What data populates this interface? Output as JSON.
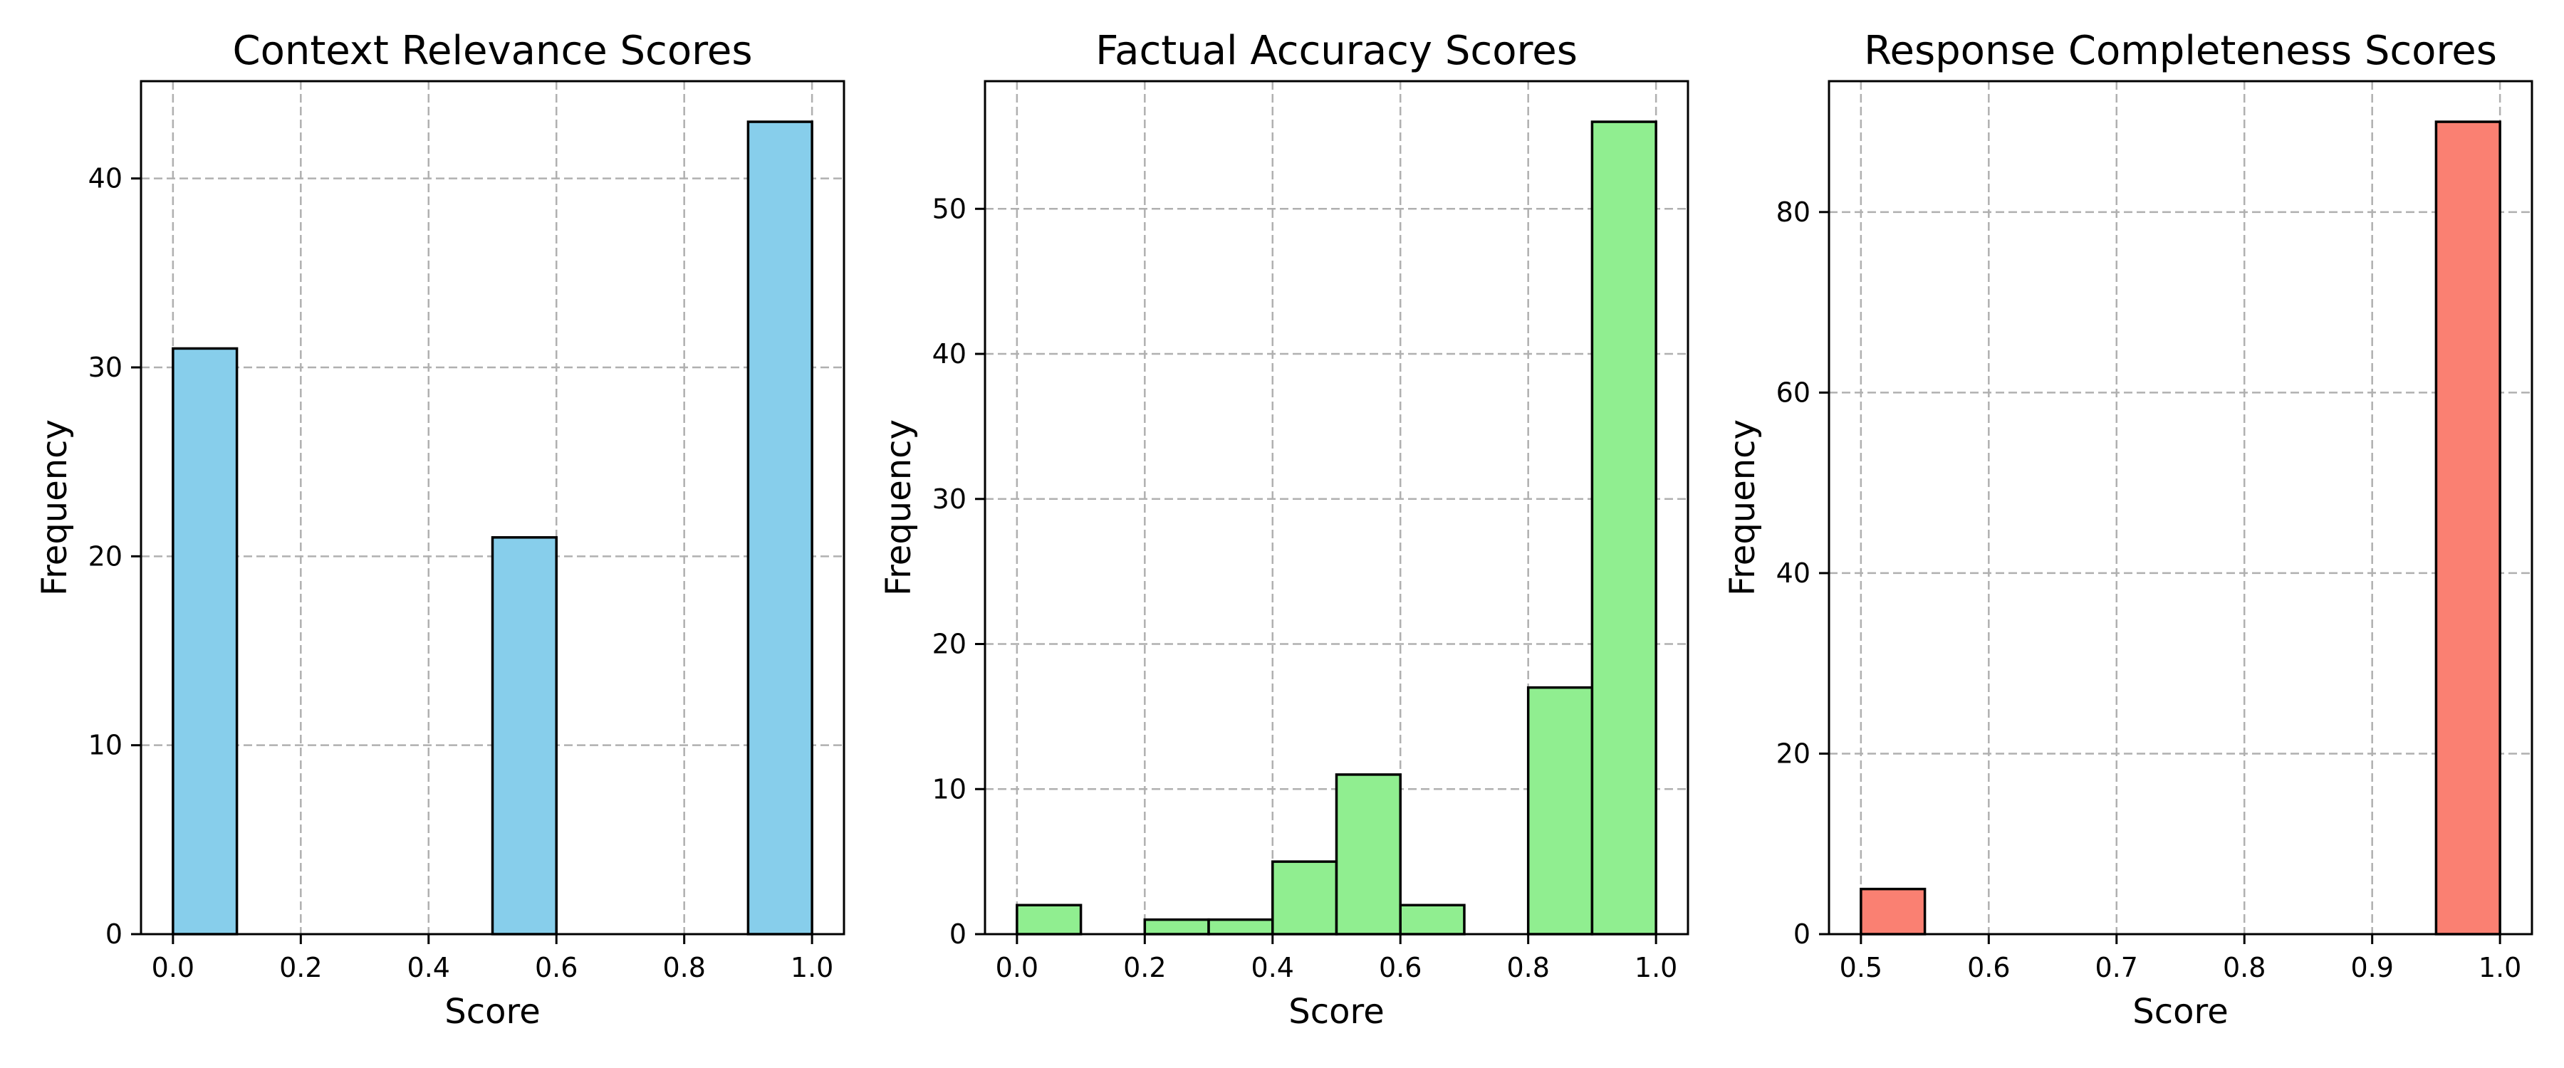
{
  "chart_data": [
    {
      "type": "bar",
      "title": "Context Relevance Scores",
      "xlabel": "Score",
      "ylabel": "Frequency",
      "color": "#87ceeb",
      "bin_edges": [
        0.0,
        0.1,
        0.2,
        0.3,
        0.4,
        0.5,
        0.6,
        0.7,
        0.8,
        0.9,
        1.0
      ],
      "values": [
        31,
        0,
        0,
        0,
        0,
        21,
        0,
        0,
        0,
        43
      ],
      "xlim": [
        -0.05,
        1.05
      ],
      "ylim": [
        0,
        45.15
      ],
      "xticks": [
        0.0,
        0.2,
        0.4,
        0.6,
        0.8,
        1.0
      ],
      "xtick_labels": [
        "0.0",
        "0.2",
        "0.4",
        "0.6",
        "0.8",
        "1.0"
      ],
      "yticks": [
        0,
        10,
        20,
        30,
        40
      ],
      "ytick_labels": [
        "0",
        "10",
        "20",
        "30",
        "40"
      ],
      "grid": true
    },
    {
      "type": "bar",
      "title": "Factual Accuracy Scores",
      "xlabel": "Score",
      "ylabel": "Frequency",
      "color": "#90ee90",
      "bin_edges": [
        0.0,
        0.1,
        0.2,
        0.3,
        0.4,
        0.5,
        0.6,
        0.7,
        0.8,
        0.9,
        1.0
      ],
      "values": [
        2,
        0,
        1,
        1,
        5,
        11,
        2,
        0,
        17,
        56
      ],
      "xlim": [
        -0.05,
        1.05
      ],
      "ylim": [
        0,
        58.8
      ],
      "xticks": [
        0.0,
        0.2,
        0.4,
        0.6,
        0.8,
        1.0
      ],
      "xtick_labels": [
        "0.0",
        "0.2",
        "0.4",
        "0.6",
        "0.8",
        "1.0"
      ],
      "yticks": [
        0,
        10,
        20,
        30,
        40,
        50
      ],
      "ytick_labels": [
        "0",
        "10",
        "20",
        "30",
        "40",
        "50"
      ],
      "grid": true
    },
    {
      "type": "bar",
      "title": "Response Completeness Scores",
      "xlabel": "Score",
      "ylabel": "Frequency",
      "color": "#fa8072",
      "bin_edges": [
        0.5,
        0.55,
        0.6,
        0.65,
        0.7,
        0.75,
        0.8,
        0.85,
        0.9,
        0.95,
        1.0
      ],
      "values": [
        5,
        0,
        0,
        0,
        0,
        0,
        0,
        0,
        0,
        90
      ],
      "xlim": [
        0.475,
        1.025
      ],
      "ylim": [
        0,
        94.5
      ],
      "xticks": [
        0.5,
        0.6,
        0.7,
        0.8,
        0.9,
        1.0
      ],
      "xtick_labels": [
        "0.5",
        "0.6",
        "0.7",
        "0.8",
        "0.9",
        "1.0"
      ],
      "yticks": [
        0,
        20,
        40,
        60,
        80
      ],
      "ytick_labels": [
        "0",
        "20",
        "40",
        "60",
        "80"
      ],
      "grid": true
    }
  ]
}
